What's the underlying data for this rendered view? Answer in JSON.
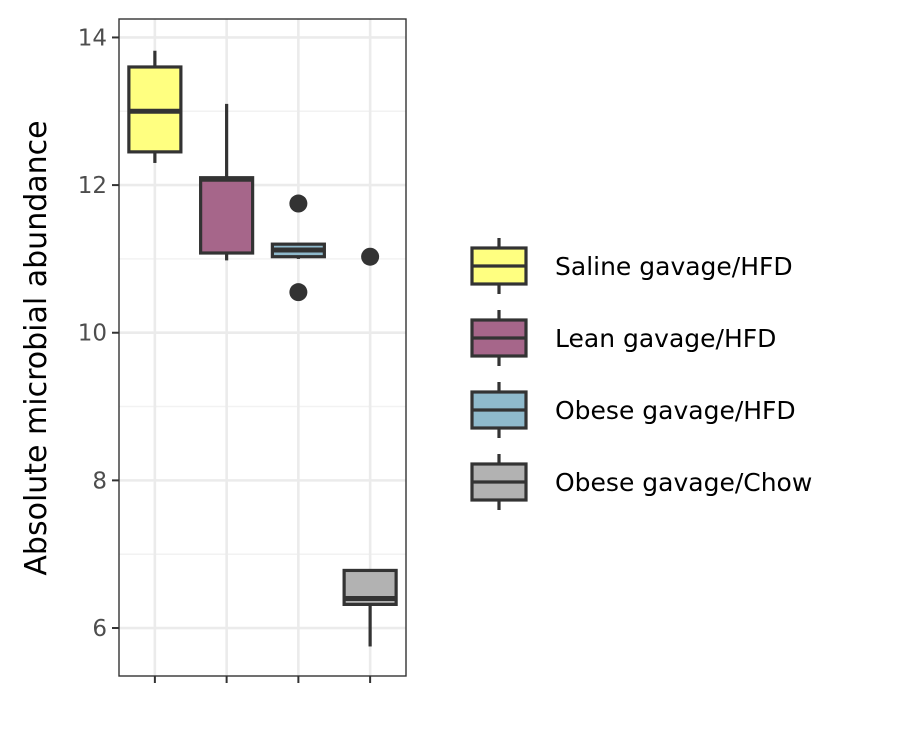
{
  "chart_data": {
    "type": "box",
    "ylabel": "Absolute microbial abundance",
    "xlabel": "",
    "ylim": [
      5.35,
      14.25
    ],
    "yticks": [
      6,
      8,
      10,
      12,
      14
    ],
    "ytick_labels": [
      "6",
      "8",
      "10",
      "12",
      "14"
    ],
    "grid": true,
    "legend_position": "right",
    "series": [
      {
        "name": "Saline gavage/HFD",
        "color": "#ffff80",
        "whisker_low": 12.3,
        "q1": 12.45,
        "median": 13.0,
        "q3": 13.6,
        "whisker_high": 13.82,
        "outliers": []
      },
      {
        "name": "Lean gavage/HFD",
        "color": "#a6668a",
        "whisker_low": 10.98,
        "q1": 11.08,
        "median": 12.08,
        "q3": 12.1,
        "whisker_high": 13.1,
        "outliers": []
      },
      {
        "name": "Obese gavage/HFD",
        "color": "#8fbacc",
        "whisker_low": 11.0,
        "q1": 11.03,
        "median": 11.12,
        "q3": 11.2,
        "whisker_high": 11.2,
        "outliers": [
          11.75,
          10.55
        ]
      },
      {
        "name": "Obese gavage/Chow",
        "color": "#b2b2b2",
        "whisker_low": 5.75,
        "q1": 6.32,
        "median": 6.4,
        "q3": 6.78,
        "whisker_high": 6.78,
        "outliers": [
          11.03
        ]
      }
    ]
  }
}
